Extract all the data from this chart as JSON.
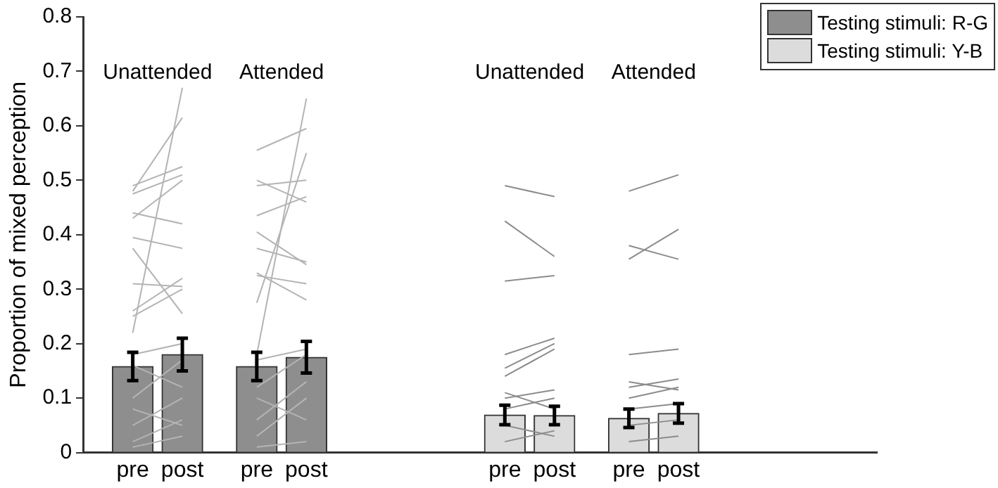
{
  "chart_data": {
    "type": "bar",
    "ylabel": "Proportion of mixed perception",
    "categories": [
      null,
      null,
      "pre",
      null,
      "post",
      null,
      null,
      "pre",
      null,
      "post",
      null,
      null,
      null,
      null,
      null,
      null,
      null,
      "pre",
      null,
      "post",
      null,
      null,
      "pre",
      null,
      "post",
      null,
      null,
      null,
      null,
      null,
      null,
      null,
      null
    ],
    "ylim": [
      0,
      0.8
    ],
    "yticks": [
      0,
      0.1,
      0.2,
      0.3,
      0.4,
      0.5,
      0.6,
      0.7,
      0.8
    ],
    "grid": false,
    "legend": "top right",
    "annotations": [
      "Unattended",
      "Attended",
      "Unattended",
      "Attended"
    ],
    "series": [
      {
        "name": "Testing stimuli: R-G",
        "color": "#8e8e8e",
        "values": [
          null,
          null,
          0.158,
          null,
          0.18,
          null,
          null,
          0.158,
          null,
          0.175,
          null,
          null,
          null,
          null,
          null,
          null,
          null,
          null,
          null,
          null,
          null,
          null,
          null,
          null,
          null,
          null,
          null,
          null,
          null,
          null,
          null,
          null,
          null
        ],
        "errors": [
          null,
          null,
          0.026,
          null,
          0.03,
          null,
          null,
          0.026,
          null,
          0.029,
          null,
          null,
          null,
          null,
          null,
          null,
          null,
          null,
          null,
          null,
          null,
          null,
          null,
          null,
          null,
          null,
          null,
          null,
          null,
          null,
          null,
          null,
          null
        ]
      },
      {
        "name": "Testing stimuli: Y-B",
        "color": "#dcdcdc",
        "values": [
          null,
          null,
          null,
          null,
          null,
          null,
          null,
          null,
          null,
          null,
          null,
          null,
          null,
          null,
          null,
          null,
          null,
          0.069,
          null,
          0.068,
          null,
          null,
          0.063,
          null,
          0.072,
          null,
          null,
          null,
          null,
          null,
          null,
          null,
          null
        ],
        "errors": [
          null,
          null,
          null,
          null,
          null,
          null,
          null,
          null,
          null,
          null,
          null,
          null,
          null,
          null,
          null,
          null,
          null,
          0.018,
          null,
          0.017,
          null,
          null,
          0.017,
          null,
          0.018,
          null,
          null,
          null,
          null,
          null,
          null,
          null,
          null
        ]
      },
      {
        "type": "line",
        "color": "#b4b4b4",
        "values": [
          null,
          null,
          0.22,
          null,
          0.67,
          null,
          null,
          null,
          null,
          null,
          null,
          null,
          null,
          null,
          null,
          null,
          null,
          null,
          null,
          null,
          null,
          null,
          null,
          null,
          null,
          null,
          null,
          null,
          null,
          null,
          null,
          null,
          null
        ]
      },
      {
        "type": "line",
        "color": "#b4b4b4",
        "values": [
          null,
          null,
          0.48,
          null,
          0.615,
          null,
          null,
          null,
          null,
          null,
          null,
          null,
          null,
          null,
          null,
          null,
          null,
          null,
          null,
          null,
          null,
          null,
          null,
          null,
          null,
          null,
          null,
          null,
          null,
          null,
          null,
          null,
          null
        ]
      },
      {
        "type": "line",
        "color": "#b4b4b4",
        "values": [
          null,
          null,
          0.49,
          null,
          0.525,
          null,
          null,
          null,
          null,
          null,
          null,
          null,
          null,
          null,
          null,
          null,
          null,
          null,
          null,
          null,
          null,
          null,
          null,
          null,
          null,
          null,
          null,
          null,
          null,
          null,
          null,
          null,
          null
        ]
      },
      {
        "type": "line",
        "color": "#b4b4b4",
        "values": [
          null,
          null,
          0.475,
          null,
          0.51,
          null,
          null,
          null,
          null,
          null,
          null,
          null,
          null,
          null,
          null,
          null,
          null,
          null,
          null,
          null,
          null,
          null,
          null,
          null,
          null,
          null,
          null,
          null,
          null,
          null,
          null,
          null,
          null
        ]
      },
      {
        "type": "line",
        "color": "#b4b4b4",
        "values": [
          null,
          null,
          0.43,
          null,
          0.5,
          null,
          null,
          null,
          null,
          null,
          null,
          null,
          null,
          null,
          null,
          null,
          null,
          null,
          null,
          null,
          null,
          null,
          null,
          null,
          null,
          null,
          null,
          null,
          null,
          null,
          null,
          null,
          null
        ]
      },
      {
        "type": "line",
        "color": "#b4b4b4",
        "values": [
          null,
          null,
          0.44,
          null,
          0.42,
          null,
          null,
          null,
          null,
          null,
          null,
          null,
          null,
          null,
          null,
          null,
          null,
          null,
          null,
          null,
          null,
          null,
          null,
          null,
          null,
          null,
          null,
          null,
          null,
          null,
          null,
          null,
          null
        ]
      },
      {
        "type": "line",
        "color": "#b4b4b4",
        "values": [
          null,
          null,
          0.395,
          null,
          0.375,
          null,
          null,
          null,
          null,
          null,
          null,
          null,
          null,
          null,
          null,
          null,
          null,
          null,
          null,
          null,
          null,
          null,
          null,
          null,
          null,
          null,
          null,
          null,
          null,
          null,
          null,
          null,
          null
        ]
      },
      {
        "type": "line",
        "color": "#b4b4b4",
        "values": [
          null,
          null,
          0.375,
          null,
          0.255,
          null,
          null,
          null,
          null,
          null,
          null,
          null,
          null,
          null,
          null,
          null,
          null,
          null,
          null,
          null,
          null,
          null,
          null,
          null,
          null,
          null,
          null,
          null,
          null,
          null,
          null,
          null,
          null
        ]
      },
      {
        "type": "line",
        "color": "#b4b4b4",
        "values": [
          null,
          null,
          0.31,
          null,
          0.305,
          null,
          null,
          null,
          null,
          null,
          null,
          null,
          null,
          null,
          null,
          null,
          null,
          null,
          null,
          null,
          null,
          null,
          null,
          null,
          null,
          null,
          null,
          null,
          null,
          null,
          null,
          null,
          null
        ]
      },
      {
        "type": "line",
        "color": "#b4b4b4",
        "values": [
          null,
          null,
          0.26,
          null,
          0.32,
          null,
          null,
          null,
          null,
          null,
          null,
          null,
          null,
          null,
          null,
          null,
          null,
          null,
          null,
          null,
          null,
          null,
          null,
          null,
          null,
          null,
          null,
          null,
          null,
          null,
          null,
          null,
          null
        ]
      },
      {
        "type": "line",
        "color": "#b4b4b4",
        "values": [
          null,
          null,
          0.25,
          null,
          0.3,
          null,
          null,
          null,
          null,
          null,
          null,
          null,
          null,
          null,
          null,
          null,
          null,
          null,
          null,
          null,
          null,
          null,
          null,
          null,
          null,
          null,
          null,
          null,
          null,
          null,
          null,
          null,
          null
        ]
      },
      {
        "type": "line",
        "color": "#b4b4b4",
        "values": [
          null,
          null,
          0.18,
          null,
          0.2,
          null,
          null,
          null,
          null,
          null,
          null,
          null,
          null,
          null,
          null,
          null,
          null,
          null,
          null,
          null,
          null,
          null,
          null,
          null,
          null,
          null,
          null,
          null,
          null,
          null,
          null,
          null,
          null
        ]
      },
      {
        "type": "line",
        "color": "#b4b4b4",
        "values": [
          null,
          null,
          0.16,
          null,
          0.12,
          null,
          null,
          null,
          null,
          null,
          null,
          null,
          null,
          null,
          null,
          null,
          null,
          null,
          null,
          null,
          null,
          null,
          null,
          null,
          null,
          null,
          null,
          null,
          null,
          null,
          null,
          null,
          null
        ]
      },
      {
        "type": "line",
        "color": "#b4b4b4",
        "values": [
          null,
          null,
          0.1,
          null,
          0.17,
          null,
          null,
          null,
          null,
          null,
          null,
          null,
          null,
          null,
          null,
          null,
          null,
          null,
          null,
          null,
          null,
          null,
          null,
          null,
          null,
          null,
          null,
          null,
          null,
          null,
          null,
          null,
          null
        ]
      },
      {
        "type": "line",
        "color": "#b4b4b4",
        "values": [
          null,
          null,
          0.08,
          null,
          0.05,
          null,
          null,
          null,
          null,
          null,
          null,
          null,
          null,
          null,
          null,
          null,
          null,
          null,
          null,
          null,
          null,
          null,
          null,
          null,
          null,
          null,
          null,
          null,
          null,
          null,
          null,
          null,
          null
        ]
      },
      {
        "type": "line",
        "color": "#b4b4b4",
        "values": [
          null,
          null,
          0.05,
          null,
          0.1,
          null,
          null,
          null,
          null,
          null,
          null,
          null,
          null,
          null,
          null,
          null,
          null,
          null,
          null,
          null,
          null,
          null,
          null,
          null,
          null,
          null,
          null,
          null,
          null,
          null,
          null,
          null,
          null
        ]
      },
      {
        "type": "line",
        "color": "#b4b4b4",
        "values": [
          null,
          null,
          0.02,
          null,
          0.06,
          null,
          null,
          null,
          null,
          null,
          null,
          null,
          null,
          null,
          null,
          null,
          null,
          null,
          null,
          null,
          null,
          null,
          null,
          null,
          null,
          null,
          null,
          null,
          null,
          null,
          null,
          null,
          null
        ]
      },
      {
        "type": "line",
        "color": "#b4b4b4",
        "values": [
          null,
          null,
          0.01,
          null,
          0.03,
          null,
          null,
          null,
          null,
          null,
          null,
          null,
          null,
          null,
          null,
          null,
          null,
          null,
          null,
          null,
          null,
          null,
          null,
          null,
          null,
          null,
          null,
          null,
          null,
          null,
          null,
          null,
          null
        ]
      },
      {
        "type": "line",
        "color": "#b4b4b4",
        "values": [
          null,
          null,
          null,
          null,
          null,
          null,
          null,
          0.18,
          null,
          0.65,
          null,
          null,
          null,
          null,
          null,
          null,
          null,
          null,
          null,
          null,
          null,
          null,
          null,
          null,
          null,
          null,
          null,
          null,
          null,
          null,
          null,
          null,
          null
        ]
      },
      {
        "type": "line",
        "color": "#b4b4b4",
        "values": [
          null,
          null,
          null,
          null,
          null,
          null,
          null,
          0.555,
          null,
          0.595,
          null,
          null,
          null,
          null,
          null,
          null,
          null,
          null,
          null,
          null,
          null,
          null,
          null,
          null,
          null,
          null,
          null,
          null,
          null,
          null,
          null,
          null,
          null
        ]
      },
      {
        "type": "line",
        "color": "#b4b4b4",
        "values": [
          null,
          null,
          null,
          null,
          null,
          null,
          null,
          0.49,
          null,
          0.5,
          null,
          null,
          null,
          null,
          null,
          null,
          null,
          null,
          null,
          null,
          null,
          null,
          null,
          null,
          null,
          null,
          null,
          null,
          null,
          null,
          null,
          null,
          null
        ]
      },
      {
        "type": "line",
        "color": "#b4b4b4",
        "values": [
          null,
          null,
          null,
          null,
          null,
          null,
          null,
          0.5,
          null,
          0.46,
          null,
          null,
          null,
          null,
          null,
          null,
          null,
          null,
          null,
          null,
          null,
          null,
          null,
          null,
          null,
          null,
          null,
          null,
          null,
          null,
          null,
          null,
          null
        ]
      },
      {
        "type": "line",
        "color": "#b4b4b4",
        "values": [
          null,
          null,
          null,
          null,
          null,
          null,
          null,
          0.435,
          null,
          0.47,
          null,
          null,
          null,
          null,
          null,
          null,
          null,
          null,
          null,
          null,
          null,
          null,
          null,
          null,
          null,
          null,
          null,
          null,
          null,
          null,
          null,
          null,
          null
        ]
      },
      {
        "type": "line",
        "color": "#b4b4b4",
        "values": [
          null,
          null,
          null,
          null,
          null,
          null,
          null,
          0.405,
          null,
          0.345,
          null,
          null,
          null,
          null,
          null,
          null,
          null,
          null,
          null,
          null,
          null,
          null,
          null,
          null,
          null,
          null,
          null,
          null,
          null,
          null,
          null,
          null,
          null
        ]
      },
      {
        "type": "line",
        "color": "#b4b4b4",
        "values": [
          null,
          null,
          null,
          null,
          null,
          null,
          null,
          0.375,
          null,
          0.35,
          null,
          null,
          null,
          null,
          null,
          null,
          null,
          null,
          null,
          null,
          null,
          null,
          null,
          null,
          null,
          null,
          null,
          null,
          null,
          null,
          null,
          null,
          null
        ]
      },
      {
        "type": "line",
        "color": "#b4b4b4",
        "values": [
          null,
          null,
          null,
          null,
          null,
          null,
          null,
          0.33,
          null,
          0.28,
          null,
          null,
          null,
          null,
          null,
          null,
          null,
          null,
          null,
          null,
          null,
          null,
          null,
          null,
          null,
          null,
          null,
          null,
          null,
          null,
          null,
          null,
          null
        ]
      },
      {
        "type": "line",
        "color": "#b4b4b4",
        "values": [
          null,
          null,
          null,
          null,
          null,
          null,
          null,
          0.325,
          null,
          0.31,
          null,
          null,
          null,
          null,
          null,
          null,
          null,
          null,
          null,
          null,
          null,
          null,
          null,
          null,
          null,
          null,
          null,
          null,
          null,
          null,
          null,
          null,
          null
        ]
      },
      {
        "type": "line",
        "color": "#b4b4b4",
        "values": [
          null,
          null,
          null,
          null,
          null,
          null,
          null,
          0.275,
          null,
          0.55,
          null,
          null,
          null,
          null,
          null,
          null,
          null,
          null,
          null,
          null,
          null,
          null,
          null,
          null,
          null,
          null,
          null,
          null,
          null,
          null,
          null,
          null,
          null
        ]
      },
      {
        "type": "line",
        "color": "#b4b4b4",
        "values": [
          null,
          null,
          null,
          null,
          null,
          null,
          null,
          0.17,
          null,
          0.19,
          null,
          null,
          null,
          null,
          null,
          null,
          null,
          null,
          null,
          null,
          null,
          null,
          null,
          null,
          null,
          null,
          null,
          null,
          null,
          null,
          null,
          null,
          null
        ]
      },
      {
        "type": "line",
        "color": "#b4b4b4",
        "values": [
          null,
          null,
          null,
          null,
          null,
          null,
          null,
          0.12,
          null,
          0.18,
          null,
          null,
          null,
          null,
          null,
          null,
          null,
          null,
          null,
          null,
          null,
          null,
          null,
          null,
          null,
          null,
          null,
          null,
          null,
          null,
          null,
          null,
          null
        ]
      },
      {
        "type": "line",
        "color": "#b4b4b4",
        "values": [
          null,
          null,
          null,
          null,
          null,
          null,
          null,
          0.1,
          null,
          0.06,
          null,
          null,
          null,
          null,
          null,
          null,
          null,
          null,
          null,
          null,
          null,
          null,
          null,
          null,
          null,
          null,
          null,
          null,
          null,
          null,
          null,
          null,
          null
        ]
      },
      {
        "type": "line",
        "color": "#b4b4b4",
        "values": [
          null,
          null,
          null,
          null,
          null,
          null,
          null,
          0.06,
          null,
          0.13,
          null,
          null,
          null,
          null,
          null,
          null,
          null,
          null,
          null,
          null,
          null,
          null,
          null,
          null,
          null,
          null,
          null,
          null,
          null,
          null,
          null,
          null,
          null
        ]
      },
      {
        "type": "line",
        "color": "#b4b4b4",
        "values": [
          null,
          null,
          null,
          null,
          null,
          null,
          null,
          0.03,
          null,
          0.1,
          null,
          null,
          null,
          null,
          null,
          null,
          null,
          null,
          null,
          null,
          null,
          null,
          null,
          null,
          null,
          null,
          null,
          null,
          null,
          null,
          null,
          null,
          null
        ]
      },
      {
        "type": "line",
        "color": "#b4b4b4",
        "values": [
          null,
          null,
          null,
          null,
          null,
          null,
          null,
          0.01,
          null,
          0.02,
          null,
          null,
          null,
          null,
          null,
          null,
          null,
          null,
          null,
          null,
          null,
          null,
          null,
          null,
          null,
          null,
          null,
          null,
          null,
          null,
          null,
          null,
          null
        ]
      },
      {
        "type": "line",
        "color": "#8c8c8c",
        "values": [
          null,
          null,
          null,
          null,
          null,
          null,
          null,
          null,
          null,
          null,
          null,
          null,
          null,
          null,
          null,
          null,
          null,
          0.49,
          null,
          0.47,
          null,
          null,
          null,
          null,
          null,
          null,
          null,
          null,
          null,
          null,
          null,
          null,
          null
        ]
      },
      {
        "type": "line",
        "color": "#8c8c8c",
        "values": [
          null,
          null,
          null,
          null,
          null,
          null,
          null,
          null,
          null,
          null,
          null,
          null,
          null,
          null,
          null,
          null,
          null,
          0.425,
          null,
          0.36,
          null,
          null,
          null,
          null,
          null,
          null,
          null,
          null,
          null,
          null,
          null,
          null,
          null
        ]
      },
      {
        "type": "line",
        "color": "#8c8c8c",
        "values": [
          null,
          null,
          null,
          null,
          null,
          null,
          null,
          null,
          null,
          null,
          null,
          null,
          null,
          null,
          null,
          null,
          null,
          0.315,
          null,
          0.325,
          null,
          null,
          null,
          null,
          null,
          null,
          null,
          null,
          null,
          null,
          null,
          null,
          null
        ]
      },
      {
        "type": "line",
        "color": "#8c8c8c",
        "values": [
          null,
          null,
          null,
          null,
          null,
          null,
          null,
          null,
          null,
          null,
          null,
          null,
          null,
          null,
          null,
          null,
          null,
          0.18,
          null,
          0.21,
          null,
          null,
          null,
          null,
          null,
          null,
          null,
          null,
          null,
          null,
          null,
          null,
          null
        ]
      },
      {
        "type": "line",
        "color": "#8c8c8c",
        "values": [
          null,
          null,
          null,
          null,
          null,
          null,
          null,
          null,
          null,
          null,
          null,
          null,
          null,
          null,
          null,
          null,
          null,
          0.155,
          null,
          0.2,
          null,
          null,
          null,
          null,
          null,
          null,
          null,
          null,
          null,
          null,
          null,
          null,
          null
        ]
      },
      {
        "type": "line",
        "color": "#8c8c8c",
        "values": [
          null,
          null,
          null,
          null,
          null,
          null,
          null,
          null,
          null,
          null,
          null,
          null,
          null,
          null,
          null,
          null,
          null,
          0.14,
          null,
          0.19,
          null,
          null,
          null,
          null,
          null,
          null,
          null,
          null,
          null,
          null,
          null,
          null,
          null
        ]
      },
      {
        "type": "line",
        "color": "#8c8c8c",
        "values": [
          null,
          null,
          null,
          null,
          null,
          null,
          null,
          null,
          null,
          null,
          null,
          null,
          null,
          null,
          null,
          null,
          null,
          0.11,
          null,
          0.08,
          null,
          null,
          null,
          null,
          null,
          null,
          null,
          null,
          null,
          null,
          null,
          null,
          null
        ]
      },
      {
        "type": "line",
        "color": "#8c8c8c",
        "values": [
          null,
          null,
          null,
          null,
          null,
          null,
          null,
          null,
          null,
          null,
          null,
          null,
          null,
          null,
          null,
          null,
          null,
          0.1,
          null,
          0.115,
          null,
          null,
          null,
          null,
          null,
          null,
          null,
          null,
          null,
          null,
          null,
          null,
          null
        ]
      },
      {
        "type": "line",
        "color": "#8c8c8c",
        "values": [
          null,
          null,
          null,
          null,
          null,
          null,
          null,
          null,
          null,
          null,
          null,
          null,
          null,
          null,
          null,
          null,
          null,
          0.08,
          null,
          0.1,
          null,
          null,
          null,
          null,
          null,
          null,
          null,
          null,
          null,
          null,
          null,
          null,
          null
        ]
      },
      {
        "type": "line",
        "color": "#8c8c8c",
        "values": [
          null,
          null,
          null,
          null,
          null,
          null,
          null,
          null,
          null,
          null,
          null,
          null,
          null,
          null,
          null,
          null,
          null,
          0.05,
          null,
          0.03,
          null,
          null,
          null,
          null,
          null,
          null,
          null,
          null,
          null,
          null,
          null,
          null,
          null
        ]
      },
      {
        "type": "line",
        "color": "#8c8c8c",
        "values": [
          null,
          null,
          null,
          null,
          null,
          null,
          null,
          null,
          null,
          null,
          null,
          null,
          null,
          null,
          null,
          null,
          null,
          0.02,
          null,
          0.04,
          null,
          null,
          null,
          null,
          null,
          null,
          null,
          null,
          null,
          null,
          null,
          null,
          null
        ]
      },
      {
        "type": "line",
        "color": "#8c8c8c",
        "values": [
          null,
          null,
          null,
          null,
          null,
          null,
          null,
          null,
          null,
          null,
          null,
          null,
          null,
          null,
          null,
          null,
          null,
          null,
          null,
          null,
          null,
          null,
          0.48,
          null,
          0.51,
          null,
          null,
          null,
          null,
          null,
          null,
          null,
          null
        ]
      },
      {
        "type": "line",
        "color": "#8c8c8c",
        "values": [
          null,
          null,
          null,
          null,
          null,
          null,
          null,
          null,
          null,
          null,
          null,
          null,
          null,
          null,
          null,
          null,
          null,
          null,
          null,
          null,
          null,
          null,
          0.38,
          null,
          0.355,
          null,
          null,
          null,
          null,
          null,
          null,
          null,
          null
        ]
      },
      {
        "type": "line",
        "color": "#8c8c8c",
        "values": [
          null,
          null,
          null,
          null,
          null,
          null,
          null,
          null,
          null,
          null,
          null,
          null,
          null,
          null,
          null,
          null,
          null,
          null,
          null,
          null,
          null,
          null,
          0.355,
          null,
          0.41,
          null,
          null,
          null,
          null,
          null,
          null,
          null,
          null
        ]
      },
      {
        "type": "line",
        "color": "#8c8c8c",
        "values": [
          null,
          null,
          null,
          null,
          null,
          null,
          null,
          null,
          null,
          null,
          null,
          null,
          null,
          null,
          null,
          null,
          null,
          null,
          null,
          null,
          null,
          null,
          0.18,
          null,
          0.19,
          null,
          null,
          null,
          null,
          null,
          null,
          null,
          null
        ]
      },
      {
        "type": "line",
        "color": "#8c8c8c",
        "values": [
          null,
          null,
          null,
          null,
          null,
          null,
          null,
          null,
          null,
          null,
          null,
          null,
          null,
          null,
          null,
          null,
          null,
          null,
          null,
          null,
          null,
          null,
          0.13,
          null,
          0.115,
          null,
          null,
          null,
          null,
          null,
          null,
          null,
          null
        ]
      },
      {
        "type": "line",
        "color": "#8c8c8c",
        "values": [
          null,
          null,
          null,
          null,
          null,
          null,
          null,
          null,
          null,
          null,
          null,
          null,
          null,
          null,
          null,
          null,
          null,
          null,
          null,
          null,
          null,
          null,
          0.12,
          null,
          0.135,
          null,
          null,
          null,
          null,
          null,
          null,
          null,
          null
        ]
      },
      {
        "type": "line",
        "color": "#8c8c8c",
        "values": [
          null,
          null,
          null,
          null,
          null,
          null,
          null,
          null,
          null,
          null,
          null,
          null,
          null,
          null,
          null,
          null,
          null,
          null,
          null,
          null,
          null,
          null,
          0.1,
          null,
          0.12,
          null,
          null,
          null,
          null,
          null,
          null,
          null,
          null
        ]
      },
      {
        "type": "line",
        "color": "#8c8c8c",
        "values": [
          null,
          null,
          null,
          null,
          null,
          null,
          null,
          null,
          null,
          null,
          null,
          null,
          null,
          null,
          null,
          null,
          null,
          null,
          null,
          null,
          null,
          null,
          0.08,
          null,
          0.09,
          null,
          null,
          null,
          null,
          null,
          null,
          null,
          null
        ]
      },
      {
        "type": "line",
        "color": "#8c8c8c",
        "values": [
          null,
          null,
          null,
          null,
          null,
          null,
          null,
          null,
          null,
          null,
          null,
          null,
          null,
          null,
          null,
          null,
          null,
          null,
          null,
          null,
          null,
          null,
          0.05,
          null,
          0.06,
          null,
          null,
          null,
          null,
          null,
          null,
          null,
          null
        ]
      },
      {
        "type": "line",
        "color": "#8c8c8c",
        "values": [
          null,
          null,
          null,
          null,
          null,
          null,
          null,
          null,
          null,
          null,
          null,
          null,
          null,
          null,
          null,
          null,
          null,
          null,
          null,
          null,
          null,
          null,
          0.02,
          null,
          0.03,
          null,
          null,
          null,
          null,
          null,
          null,
          null,
          null
        ]
      }
    ]
  }
}
